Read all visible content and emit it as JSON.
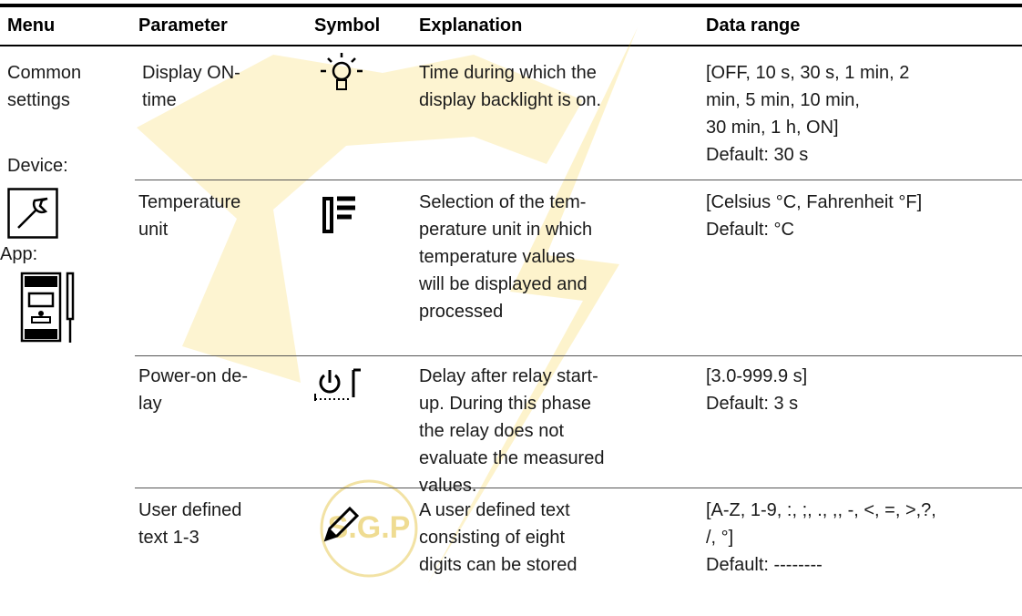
{
  "header": {
    "columns": [
      "Menu",
      "Parameter",
      "Symbol",
      "Explanation",
      "Data range"
    ]
  },
  "menu": {
    "lines": [
      "Common",
      "settings"
    ],
    "device_label": "Device:",
    "app_label": "App:"
  },
  "rows": [
    {
      "parameter": [
        "Display ON-",
        "time"
      ],
      "explanation": [
        "Time during which the",
        "display backlight is on."
      ],
      "data_range": [
        "[OFF, 10 s, 30 s, 1 min, 2",
        "min, 5 min, 10 min,",
        "30 min, 1 h, ON]",
        "Default: 30 s"
      ]
    },
    {
      "parameter": [
        "Temperature",
        "unit"
      ],
      "explanation": [
        "Selection of the tem-",
        "perature unit in which",
        "temperature values",
        "will be displayed and",
        "processed"
      ],
      "data_range": [
        "[Celsius °C, Fahrenheit °F]",
        "Default: °C"
      ]
    },
    {
      "parameter": [
        "Power-on de-",
        "lay"
      ],
      "explanation": [
        "Delay after relay start-",
        "up. During this phase",
        "the relay does not",
        "evaluate the measured",
        "values."
      ],
      "data_range": [
        "[3.0-999.9 s]",
        "Default: 3 s"
      ]
    },
    {
      "parameter": [
        "User defined",
        "text 1-3"
      ],
      "explanation": [
        "A user defined text",
        "consisting of eight",
        "digits can be stored"
      ],
      "data_range": [
        "[A-Z, 1-9, :, ;, ., ,, -, <, =, >,?,",
        "/, °]",
        "Default: --------"
      ]
    }
  ],
  "watermark": "S.G.P"
}
